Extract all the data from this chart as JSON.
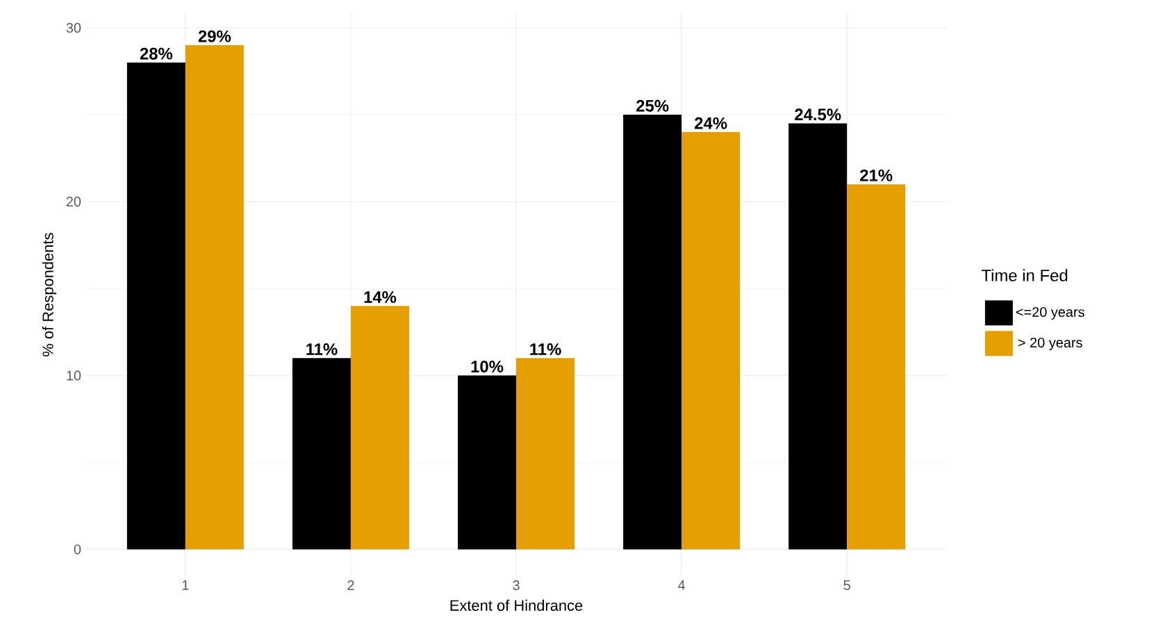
{
  "chart_data": {
    "type": "bar",
    "xlabel": "Extent of Hindrance",
    "ylabel": "% of Respondents",
    "legend_title": "Time in Fed",
    "categories": [
      "1",
      "2",
      "3",
      "4",
      "5"
    ],
    "series": [
      {
        "name": "<=20 years",
        "color": "#000000",
        "values": [
          28,
          11,
          10,
          25,
          24.5
        ],
        "value_labels": [
          "28%",
          "11%",
          "10%",
          "25%",
          "24.5%"
        ]
      },
      {
        "name": "> 20 years",
        "color": "#e69f00",
        "values": [
          29,
          14,
          11,
          24,
          21
        ],
        "value_labels": [
          "29%",
          "14%",
          "11%",
          "24%",
          "21%"
        ]
      }
    ],
    "ylim": [
      -1.5,
      30.8
    ],
    "yticks": [
      0,
      10,
      20,
      30
    ],
    "grid": true,
    "legend": "right"
  }
}
